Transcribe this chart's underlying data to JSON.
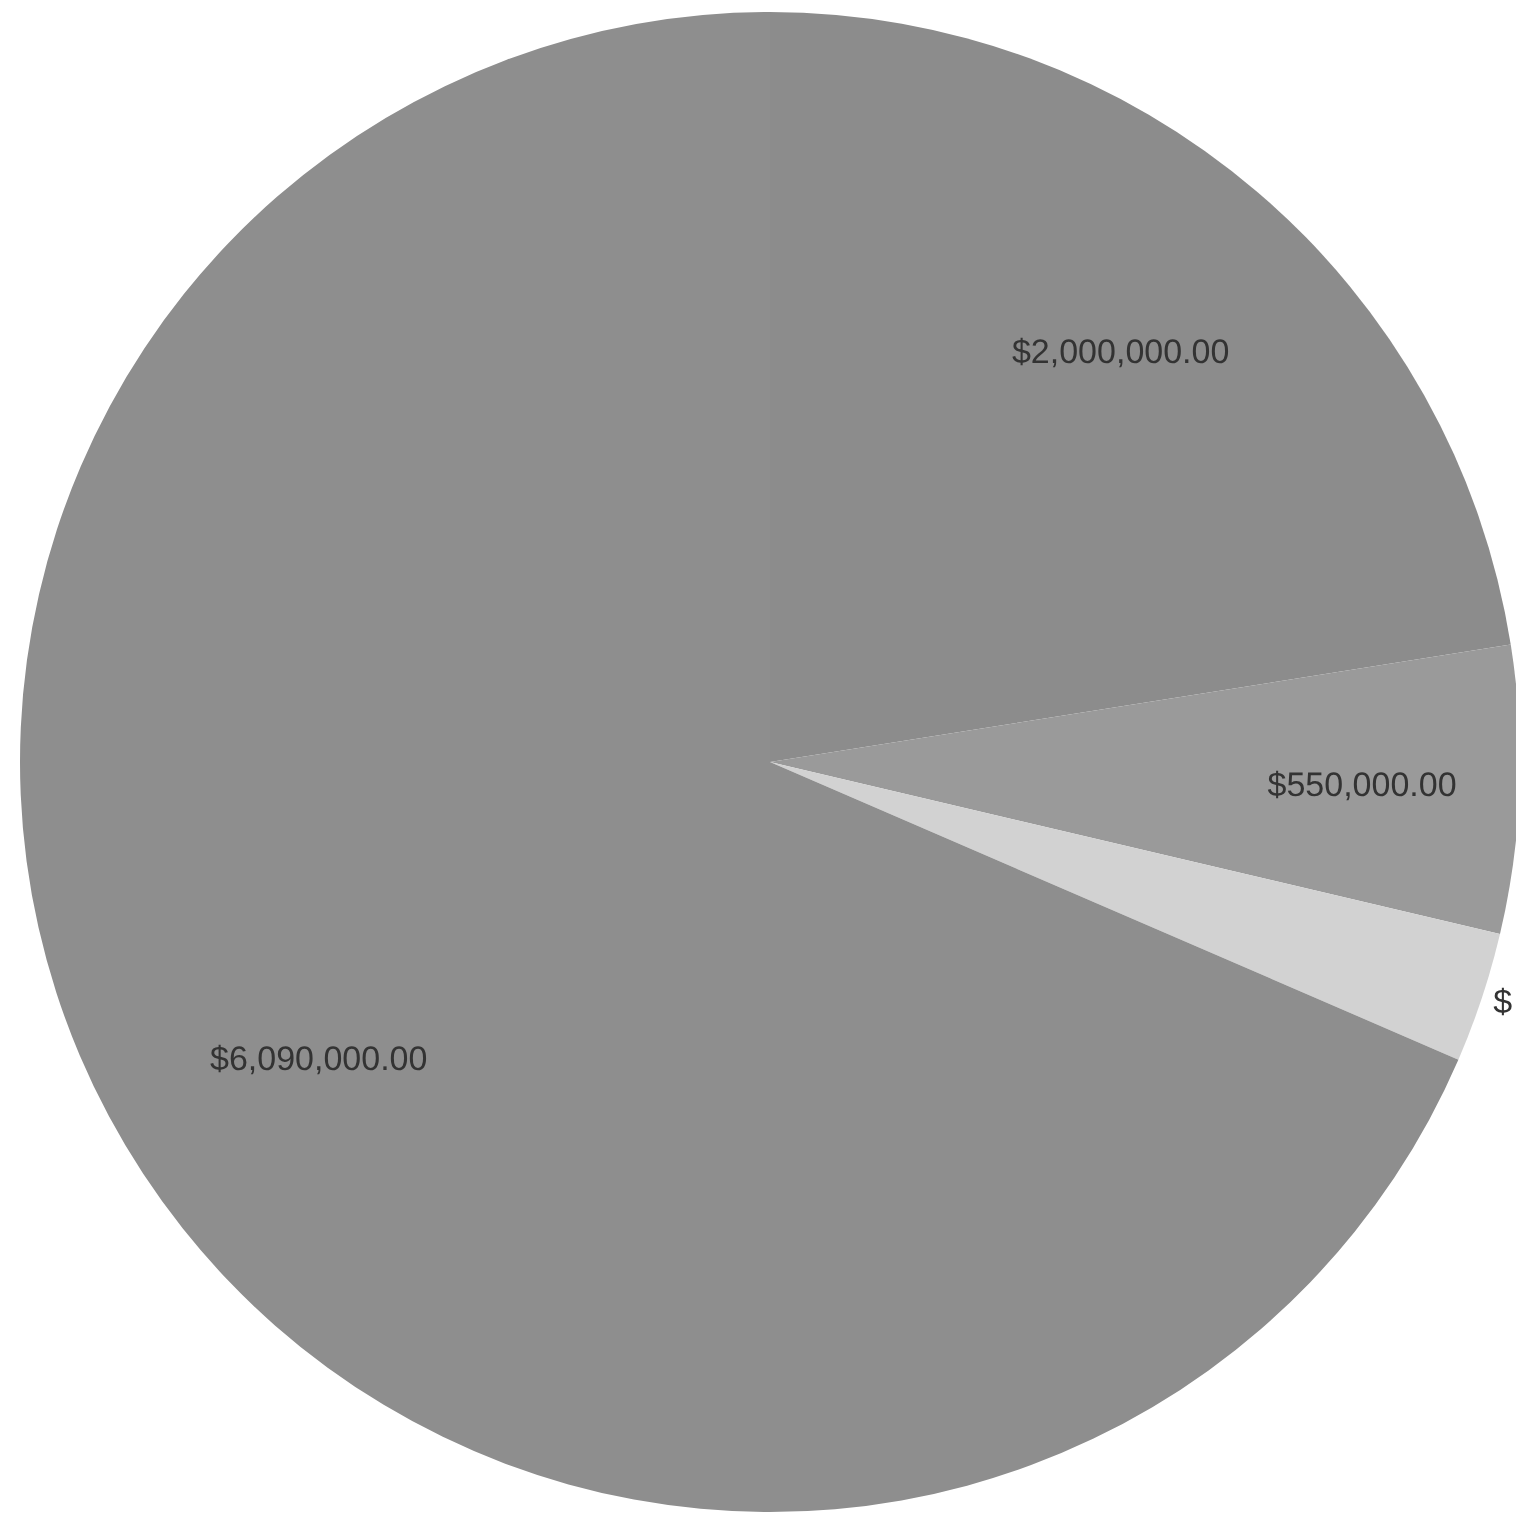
{
  "chart_data": {
    "type": "pie",
    "categories": [
      null,
      null,
      null,
      null
    ],
    "values": [
      2000000,
      550000,
      250000,
      6090000
    ],
    "colors": [
      "#8c8c8c",
      "#9a9a9a",
      "#d2d2d2",
      "#8e8e8e"
    ],
    "value_labels": [
      "$2,000,000.00",
      "$550,000.00",
      "$",
      "$6,090,000.00"
    ]
  }
}
